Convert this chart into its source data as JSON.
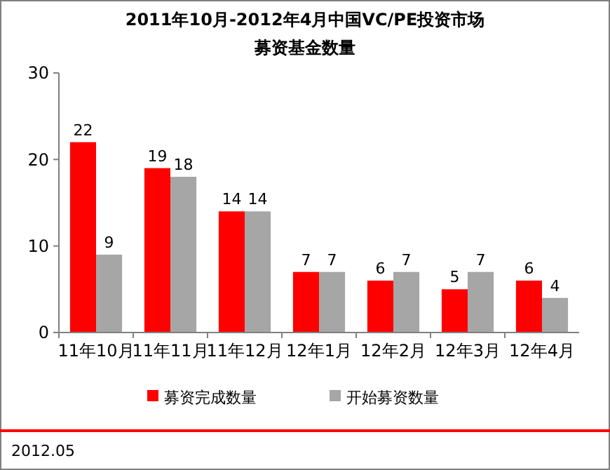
{
  "chart_data": {
    "type": "bar",
    "title": "2011年10月-2012年4月中国VC/PE投资市场",
    "subtitle": "募资基金数量",
    "categories": [
      "11年10月",
      "11年11月",
      "11年12月",
      "12年1月",
      "12年2月",
      "12年3月",
      "12年4月"
    ],
    "series": [
      {
        "name": "募资完成数量",
        "color": "#ff0000",
        "values": [
          22,
          19,
          14,
          7,
          6,
          5,
          6
        ]
      },
      {
        "name": "开始募资数量",
        "color": "#a6a6a6",
        "values": [
          9,
          18,
          14,
          7,
          7,
          7,
          4
        ]
      }
    ],
    "ylim": [
      0,
      30
    ],
    "yticks": [
      0,
      10,
      20,
      30
    ],
    "grid": false,
    "legend": "bottom",
    "data_labels": true,
    "annotations": [
      "2012.05"
    ]
  }
}
